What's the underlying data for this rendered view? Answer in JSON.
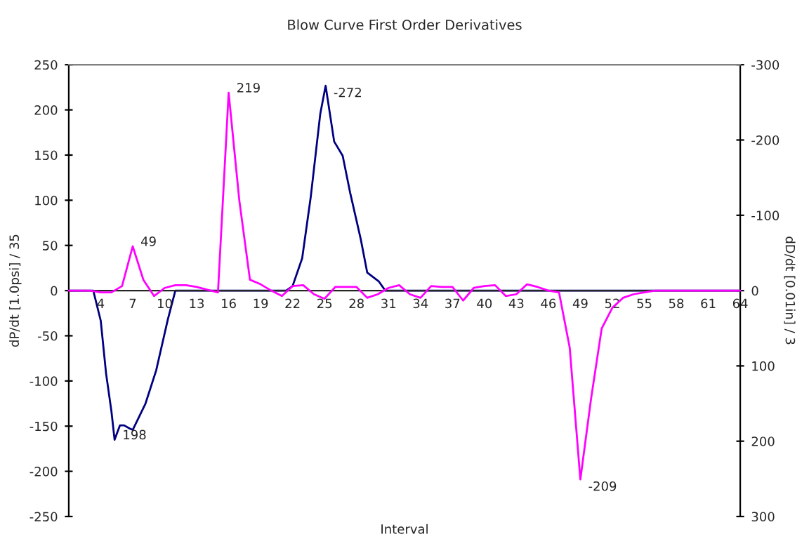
{
  "chart_data": {
    "type": "line",
    "title": "Blow Curve First Order Derivatives",
    "xlabel": "Interval",
    "ylabel": "dP/dt [1.0psi] / 35",
    "y2label": "dD/dt [0.01in] / 3",
    "xlim": [
      1,
      64
    ],
    "xticks": [
      4,
      7,
      10,
      13,
      16,
      19,
      22,
      25,
      28,
      31,
      34,
      37,
      40,
      43,
      46,
      49,
      52,
      55,
      58,
      61,
      64
    ],
    "ylim": [
      -250,
      250
    ],
    "yticks": [
      -250,
      -200,
      -150,
      -100,
      -50,
      0,
      50,
      100,
      150,
      200,
      250
    ],
    "y2lim": [
      300,
      -300
    ],
    "y2ticks": [
      -300,
      -200,
      -100,
      0,
      100,
      200,
      300
    ],
    "grid": false,
    "marker": "none",
    "line_style": "solid",
    "series": [
      {
        "color": "#ff00ff",
        "x": [
          1,
          2,
          3,
          4,
          5,
          6,
          7,
          8,
          9,
          10,
          11,
          12,
          13,
          14,
          15,
          16,
          17,
          18,
          19,
          20,
          21,
          22,
          23,
          24,
          25,
          26,
          27,
          28,
          29,
          30,
          31,
          32,
          33,
          34,
          35,
          36,
          37,
          38,
          39,
          40,
          41,
          42,
          43,
          44,
          45,
          46,
          47,
          48,
          49,
          50,
          51,
          52,
          53,
          54,
          55,
          56,
          57,
          58,
          59,
          60,
          61,
          62,
          63,
          64
        ],
        "values": [
          0,
          0,
          0,
          -2,
          -2,
          5,
          49,
          12,
          -6,
          3,
          6,
          6,
          4,
          1,
          -2,
          219,
          100,
          12,
          7,
          0,
          -6,
          5,
          6,
          -4,
          -9,
          4,
          4,
          4,
          -8,
          -4,
          3,
          6,
          -4,
          -8,
          5,
          4,
          4,
          -11,
          3,
          5,
          6,
          -6,
          -4,
          7,
          4,
          0,
          -2,
          -63,
          -209,
          -120,
          -42,
          -19,
          -8,
          -4,
          -2,
          0,
          0,
          0,
          0,
          0,
          0,
          0,
          0,
          0
        ],
        "value_labels": [
          null,
          null,
          null,
          null,
          null,
          null,
          "49",
          null,
          null,
          null,
          null,
          null,
          null,
          null,
          null,
          "219",
          null,
          null,
          null,
          null,
          null,
          null,
          null,
          null,
          null,
          null,
          null,
          null,
          null,
          null,
          null,
          null,
          null,
          null,
          null,
          null,
          null,
          null,
          null,
          null,
          null,
          null,
          null,
          null,
          null,
          null,
          null,
          null,
          "-209",
          null,
          null,
          null,
          null,
          null,
          null,
          null,
          null,
          null,
          null,
          null,
          null,
          null,
          null,
          null
        ]
      },
      {
        "color": "#000080",
        "axis": "y2",
        "x": [
          1,
          3,
          3.3,
          4,
          4.5,
          5,
          5.3,
          5.8,
          6.2,
          6.7,
          7,
          8.2,
          9.2,
          10.3,
          11,
          21.4,
          22,
          22.9,
          23.7,
          24.6,
          25.1,
          25.9,
          26.7,
          27.4,
          28.4,
          29,
          30.1,
          30.7,
          64
        ],
        "values": [
          0,
          0,
          0,
          40,
          110,
          160,
          198,
          179,
          179,
          183,
          185,
          150,
          106,
          38,
          0,
          0,
          -6,
          -43,
          -124,
          -235,
          -272,
          -198,
          -179,
          -130,
          -68,
          -24,
          -12,
          0,
          0
        ],
        "value_labels": [
          null,
          null,
          null,
          null,
          null,
          null,
          "198",
          null,
          null,
          null,
          null,
          null,
          null,
          null,
          null,
          null,
          null,
          null,
          null,
          null,
          "-272",
          null,
          null,
          null,
          null,
          null,
          null,
          null,
          null
        ]
      }
    ]
  }
}
